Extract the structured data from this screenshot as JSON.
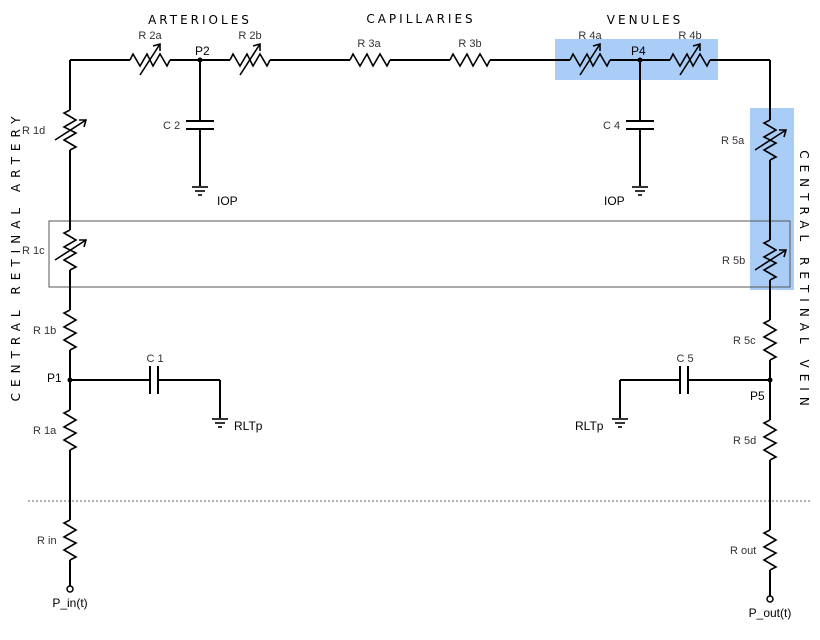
{
  "sections": {
    "arterioles": "ARTERIOLES",
    "capillaries": "CAPILLARIES",
    "venules": "VENULES",
    "artery": "CENTRAL RETINAL ARTERY",
    "vein": "CENTRAL RETINAL VEIN"
  },
  "resistors": {
    "r1a": "R 1a",
    "r1b": "R 1b",
    "r1c": "R 1c",
    "r1d": "R 1d",
    "r2a": "R 2a",
    "r2b": "R 2b",
    "r3a": "R 3a",
    "r3b": "R 3b",
    "r4a": "R 4a",
    "r4b": "R 4b",
    "r5a": "R 5a",
    "r5b": "R 5b",
    "r5c": "R 5c",
    "r5d": "R 5d",
    "rin": "R in",
    "rout": "R out"
  },
  "capacitors": {
    "c1": "C 1",
    "c2": "C 2",
    "c4": "C 4",
    "c5": "C 5"
  },
  "nodes": {
    "p1": "P1",
    "p2": "P2",
    "p4": "P4",
    "p5": "P5"
  },
  "grounds": {
    "iop_left": "IOP",
    "iop_right": "IOP",
    "rltp_left": "RLTp",
    "rltp_right": "RLTp"
  },
  "terminals": {
    "p_in": "P_in(t)",
    "p_out": "P_out(t)"
  },
  "colors": {
    "highlight": "#aacdf8",
    "wire": "#000000"
  }
}
